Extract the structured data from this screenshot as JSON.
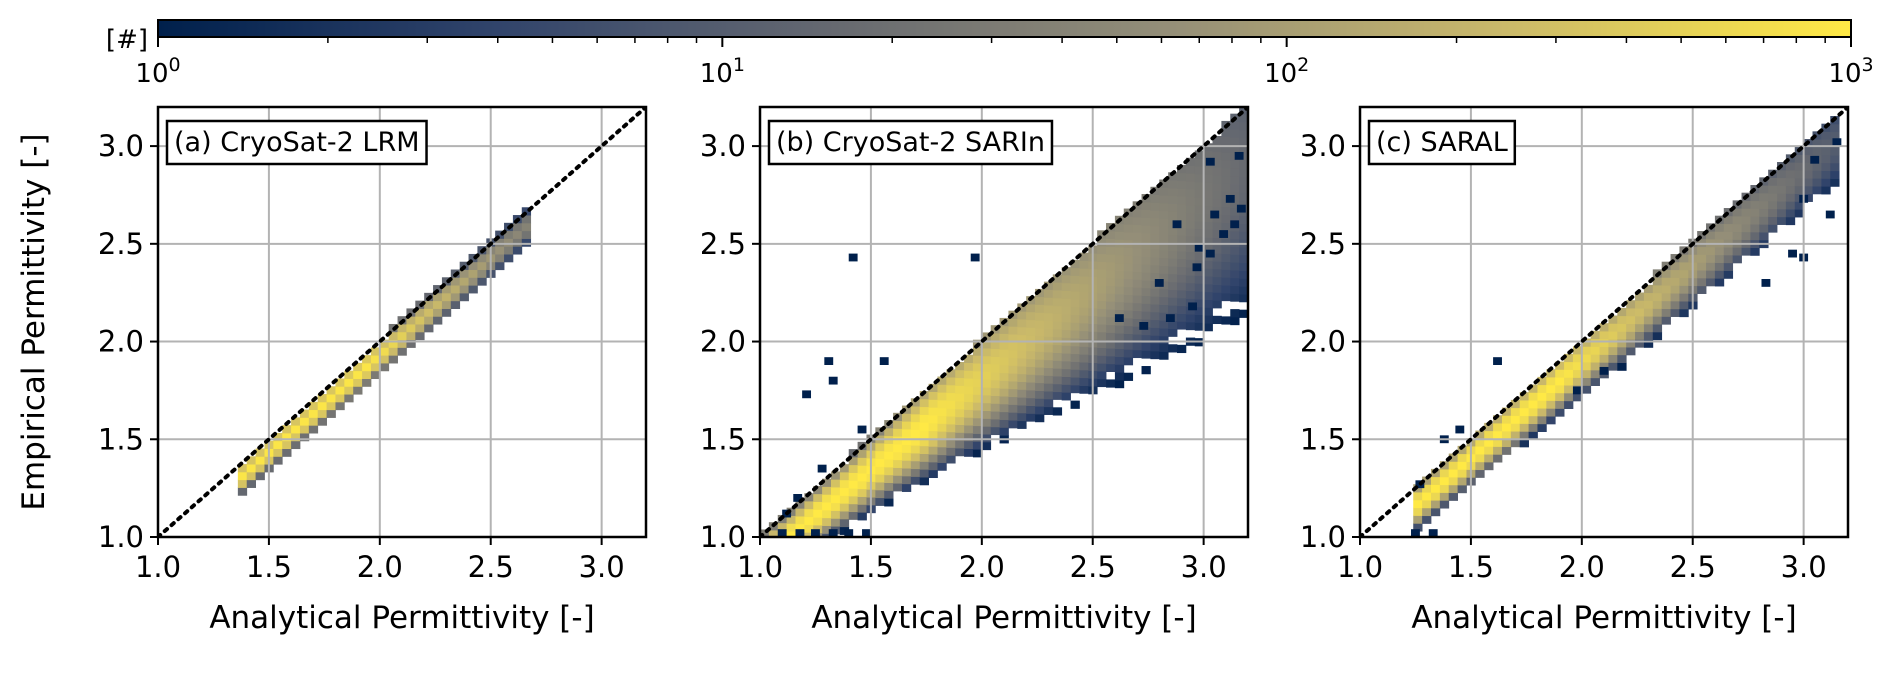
{
  "colorbar": {
    "label": "[#]",
    "scale": "log",
    "range": [
      1,
      1000
    ],
    "ticks": [
      {
        "base": "10",
        "exp": "0"
      },
      {
        "base": "10",
        "exp": "1"
      },
      {
        "base": "10",
        "exp": "2"
      },
      {
        "base": "10",
        "exp": "3"
      }
    ],
    "colormap": [
      "#00204c",
      "#31446b",
      "#666970",
      "#958f78",
      "#cbba69",
      "#ffe945"
    ]
  },
  "chart_data": [
    {
      "type": "heatmap",
      "label": "(a) CryoSat-2 LRM",
      "xlabel": "Analytical Permittivity [-]",
      "ylabel": "Empirical Permittivity [-]",
      "xlim": [
        1.0,
        3.2
      ],
      "ylim": [
        1.0,
        3.2
      ],
      "xticks": [
        "1.0",
        "1.5",
        "2.0",
        "2.5",
        "3.0"
      ],
      "yticks": [
        "1.0",
        "1.5",
        "2.0",
        "2.5",
        "3.0"
      ],
      "grid": true,
      "reference_line": "1:1 dotted",
      "density_band": {
        "x_start": 1.37,
        "x_end": 2.67,
        "dense_x_end": 1.95,
        "offset": 0.065,
        "width": 0.045,
        "spread": 0.003,
        "peak_count": 900,
        "decay": 1.9
      },
      "outliers": []
    },
    {
      "type": "heatmap",
      "label": "(b) CryoSat-2 SARIn",
      "xlabel": "Analytical Permittivity [-]",
      "ylabel": "",
      "xlim": [
        1.0,
        3.2
      ],
      "ylim": [
        1.0,
        3.2
      ],
      "xticks": [
        "1.0",
        "1.5",
        "2.0",
        "2.5",
        "3.0"
      ],
      "yticks": [
        "1.0",
        "1.5",
        "2.0",
        "2.5",
        "3.0"
      ],
      "grid": true,
      "reference_line": "1:1 dotted",
      "density_band": {
        "x_start": 1.03,
        "x_end": 3.2,
        "dense_x_end": 1.75,
        "offset": 0.12,
        "width": 0.075,
        "spread": 0.045,
        "peak_count": 1000,
        "decay": 1.25
      },
      "outliers": [
        [
          1.42,
          2.43
        ],
        [
          1.97,
          2.43
        ],
        [
          1.31,
          1.9
        ],
        [
          1.56,
          1.9
        ],
        [
          1.21,
          1.73
        ],
        [
          1.33,
          1.8
        ],
        [
          1.46,
          1.55
        ],
        [
          1.28,
          1.35
        ],
        [
          1.17,
          1.2
        ],
        [
          1.12,
          1.12
        ],
        [
          1.1,
          1.02
        ],
        [
          1.18,
          1.02
        ],
        [
          1.25,
          1.02
        ],
        [
          1.33,
          1.02
        ],
        [
          1.4,
          1.02
        ],
        [
          1.48,
          1.02
        ],
        [
          2.85,
          2.12
        ],
        [
          2.95,
          2.18
        ],
        [
          2.73,
          2.08
        ],
        [
          2.62,
          2.12
        ],
        [
          2.97,
          2.38
        ],
        [
          3.03,
          2.45
        ],
        [
          3.09,
          2.55
        ],
        [
          3.14,
          2.6
        ],
        [
          3.17,
          2.68
        ],
        [
          3.12,
          2.73
        ],
        [
          3.03,
          2.92
        ],
        [
          3.16,
          2.95
        ],
        [
          3.05,
          2.65
        ],
        [
          2.8,
          2.3
        ],
        [
          2.88,
          2.6
        ],
        [
          2.98,
          2.48
        ]
      ]
    },
    {
      "type": "heatmap",
      "label": "(c) SARAL",
      "xlabel": "Analytical Permittivity [-]",
      "ylabel": "",
      "xlim": [
        1.0,
        3.2
      ],
      "ylim": [
        1.0,
        3.2
      ],
      "xticks": [
        "1.0",
        "1.5",
        "2.0",
        "2.5",
        "3.0"
      ],
      "yticks": [
        "1.0",
        "1.5",
        "2.0",
        "2.5",
        "3.0"
      ],
      "grid": true,
      "reference_line": "1:1 dotted",
      "density_band": {
        "x_start": 1.25,
        "x_end": 3.15,
        "dense_x_end": 1.9,
        "offset": 0.085,
        "width": 0.06,
        "spread": 0.012,
        "peak_count": 1000,
        "decay": 1.6
      },
      "outliers": [
        [
          1.25,
          1.02
        ],
        [
          1.33,
          1.02
        ],
        [
          1.62,
          1.9
        ],
        [
          1.45,
          1.55
        ],
        [
          1.38,
          1.5
        ],
        [
          1.27,
          1.27
        ],
        [
          2.83,
          2.3
        ],
        [
          2.95,
          2.45
        ],
        [
          3.12,
          2.65
        ],
        [
          3.0,
          2.43
        ],
        [
          3.0,
          2.73
        ],
        [
          3.05,
          2.93
        ],
        [
          3.15,
          3.02
        ],
        [
          1.98,
          1.75
        ],
        [
          2.1,
          1.85
        ]
      ]
    }
  ]
}
